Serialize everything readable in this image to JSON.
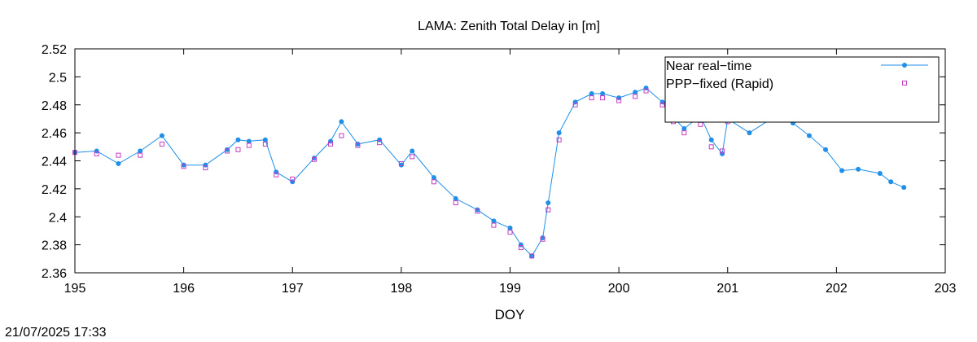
{
  "chart_data": {
    "type": "line",
    "title": "LAMA: Zenith Total Delay in [m]",
    "xlabel": "DOY",
    "ylabel": "",
    "xlim": [
      195,
      203
    ],
    "ylim": [
      2.36,
      2.52
    ],
    "xticks": [
      195,
      196,
      197,
      198,
      199,
      200,
      201,
      202,
      203
    ],
    "xtick_labels": [
      "195",
      "196",
      "197",
      "198",
      "199",
      "200",
      "201",
      "202",
      "203"
    ],
    "yticks": [
      2.36,
      2.38,
      2.4,
      2.42,
      2.44,
      2.46,
      2.48,
      2.5,
      2.52
    ],
    "ytick_labels": [
      "2.36",
      "2.38",
      "2.4",
      "2.42",
      "2.44",
      "2.46",
      "2.48",
      "2.5",
      "2.52"
    ],
    "grid": false,
    "legend_position": "top-right",
    "series": [
      {
        "name": "Near real−time",
        "color": "#1f8fe8",
        "style": "line-dots",
        "x": [
          195.0,
          195.2,
          195.4,
          195.6,
          195.8,
          196.0,
          196.2,
          196.4,
          196.5,
          196.6,
          196.75,
          196.85,
          197.0,
          197.2,
          197.35,
          197.45,
          197.6,
          197.8,
          198.0,
          198.1,
          198.3,
          198.5,
          198.7,
          198.85,
          199.0,
          199.1,
          199.2,
          199.3,
          199.35,
          199.45,
          199.6,
          199.75,
          199.85,
          200.0,
          200.15,
          200.25,
          200.4,
          200.5,
          200.6,
          200.75,
          200.85,
          200.95,
          201.0,
          201.2,
          201.4,
          201.5,
          201.6,
          201.75,
          201.9,
          202.05,
          202.2,
          202.4,
          202.5,
          202.62
        ],
        "y": [
          2.446,
          2.447,
          2.438,
          2.447,
          2.458,
          2.437,
          2.437,
          2.448,
          2.455,
          2.454,
          2.455,
          2.432,
          2.425,
          2.442,
          2.454,
          2.468,
          2.452,
          2.455,
          2.437,
          2.447,
          2.428,
          2.413,
          2.405,
          2.397,
          2.392,
          2.38,
          2.372,
          2.385,
          2.41,
          2.46,
          2.482,
          2.488,
          2.488,
          2.485,
          2.489,
          2.492,
          2.482,
          2.471,
          2.463,
          2.472,
          2.455,
          2.445,
          2.47,
          2.46,
          2.47,
          2.49,
          2.467,
          2.458,
          2.448,
          2.433,
          2.434,
          2.431,
          2.425,
          2.421
        ]
      },
      {
        "name": "PPP−fixed (Rapid)",
        "color": "#c43ec4",
        "style": "square-markers",
        "x": [
          195.0,
          195.2,
          195.4,
          195.6,
          195.8,
          196.0,
          196.2,
          196.4,
          196.5,
          196.6,
          196.75,
          196.85,
          197.0,
          197.2,
          197.35,
          197.45,
          197.6,
          197.8,
          198.0,
          198.1,
          198.3,
          198.5,
          198.7,
          198.85,
          199.0,
          199.1,
          199.2,
          199.3,
          199.35,
          199.45,
          199.6,
          199.75,
          199.85,
          200.0,
          200.15,
          200.25,
          200.4,
          200.5,
          200.6,
          200.75,
          200.85,
          200.95,
          201.0
        ],
        "y": [
          2.446,
          2.445,
          2.444,
          2.444,
          2.452,
          2.436,
          2.435,
          2.447,
          2.448,
          2.451,
          2.452,
          2.43,
          2.427,
          2.441,
          2.452,
          2.458,
          2.451,
          2.453,
          2.438,
          2.443,
          2.425,
          2.41,
          2.404,
          2.394,
          2.389,
          2.378,
          2.372,
          2.384,
          2.405,
          2.455,
          2.48,
          2.485,
          2.485,
          2.483,
          2.486,
          2.49,
          2.48,
          2.468,
          2.46,
          2.466,
          2.45,
          2.447,
          2.468
        ]
      }
    ]
  },
  "footer": {
    "timestamp": "21/07/2025 17:33"
  }
}
